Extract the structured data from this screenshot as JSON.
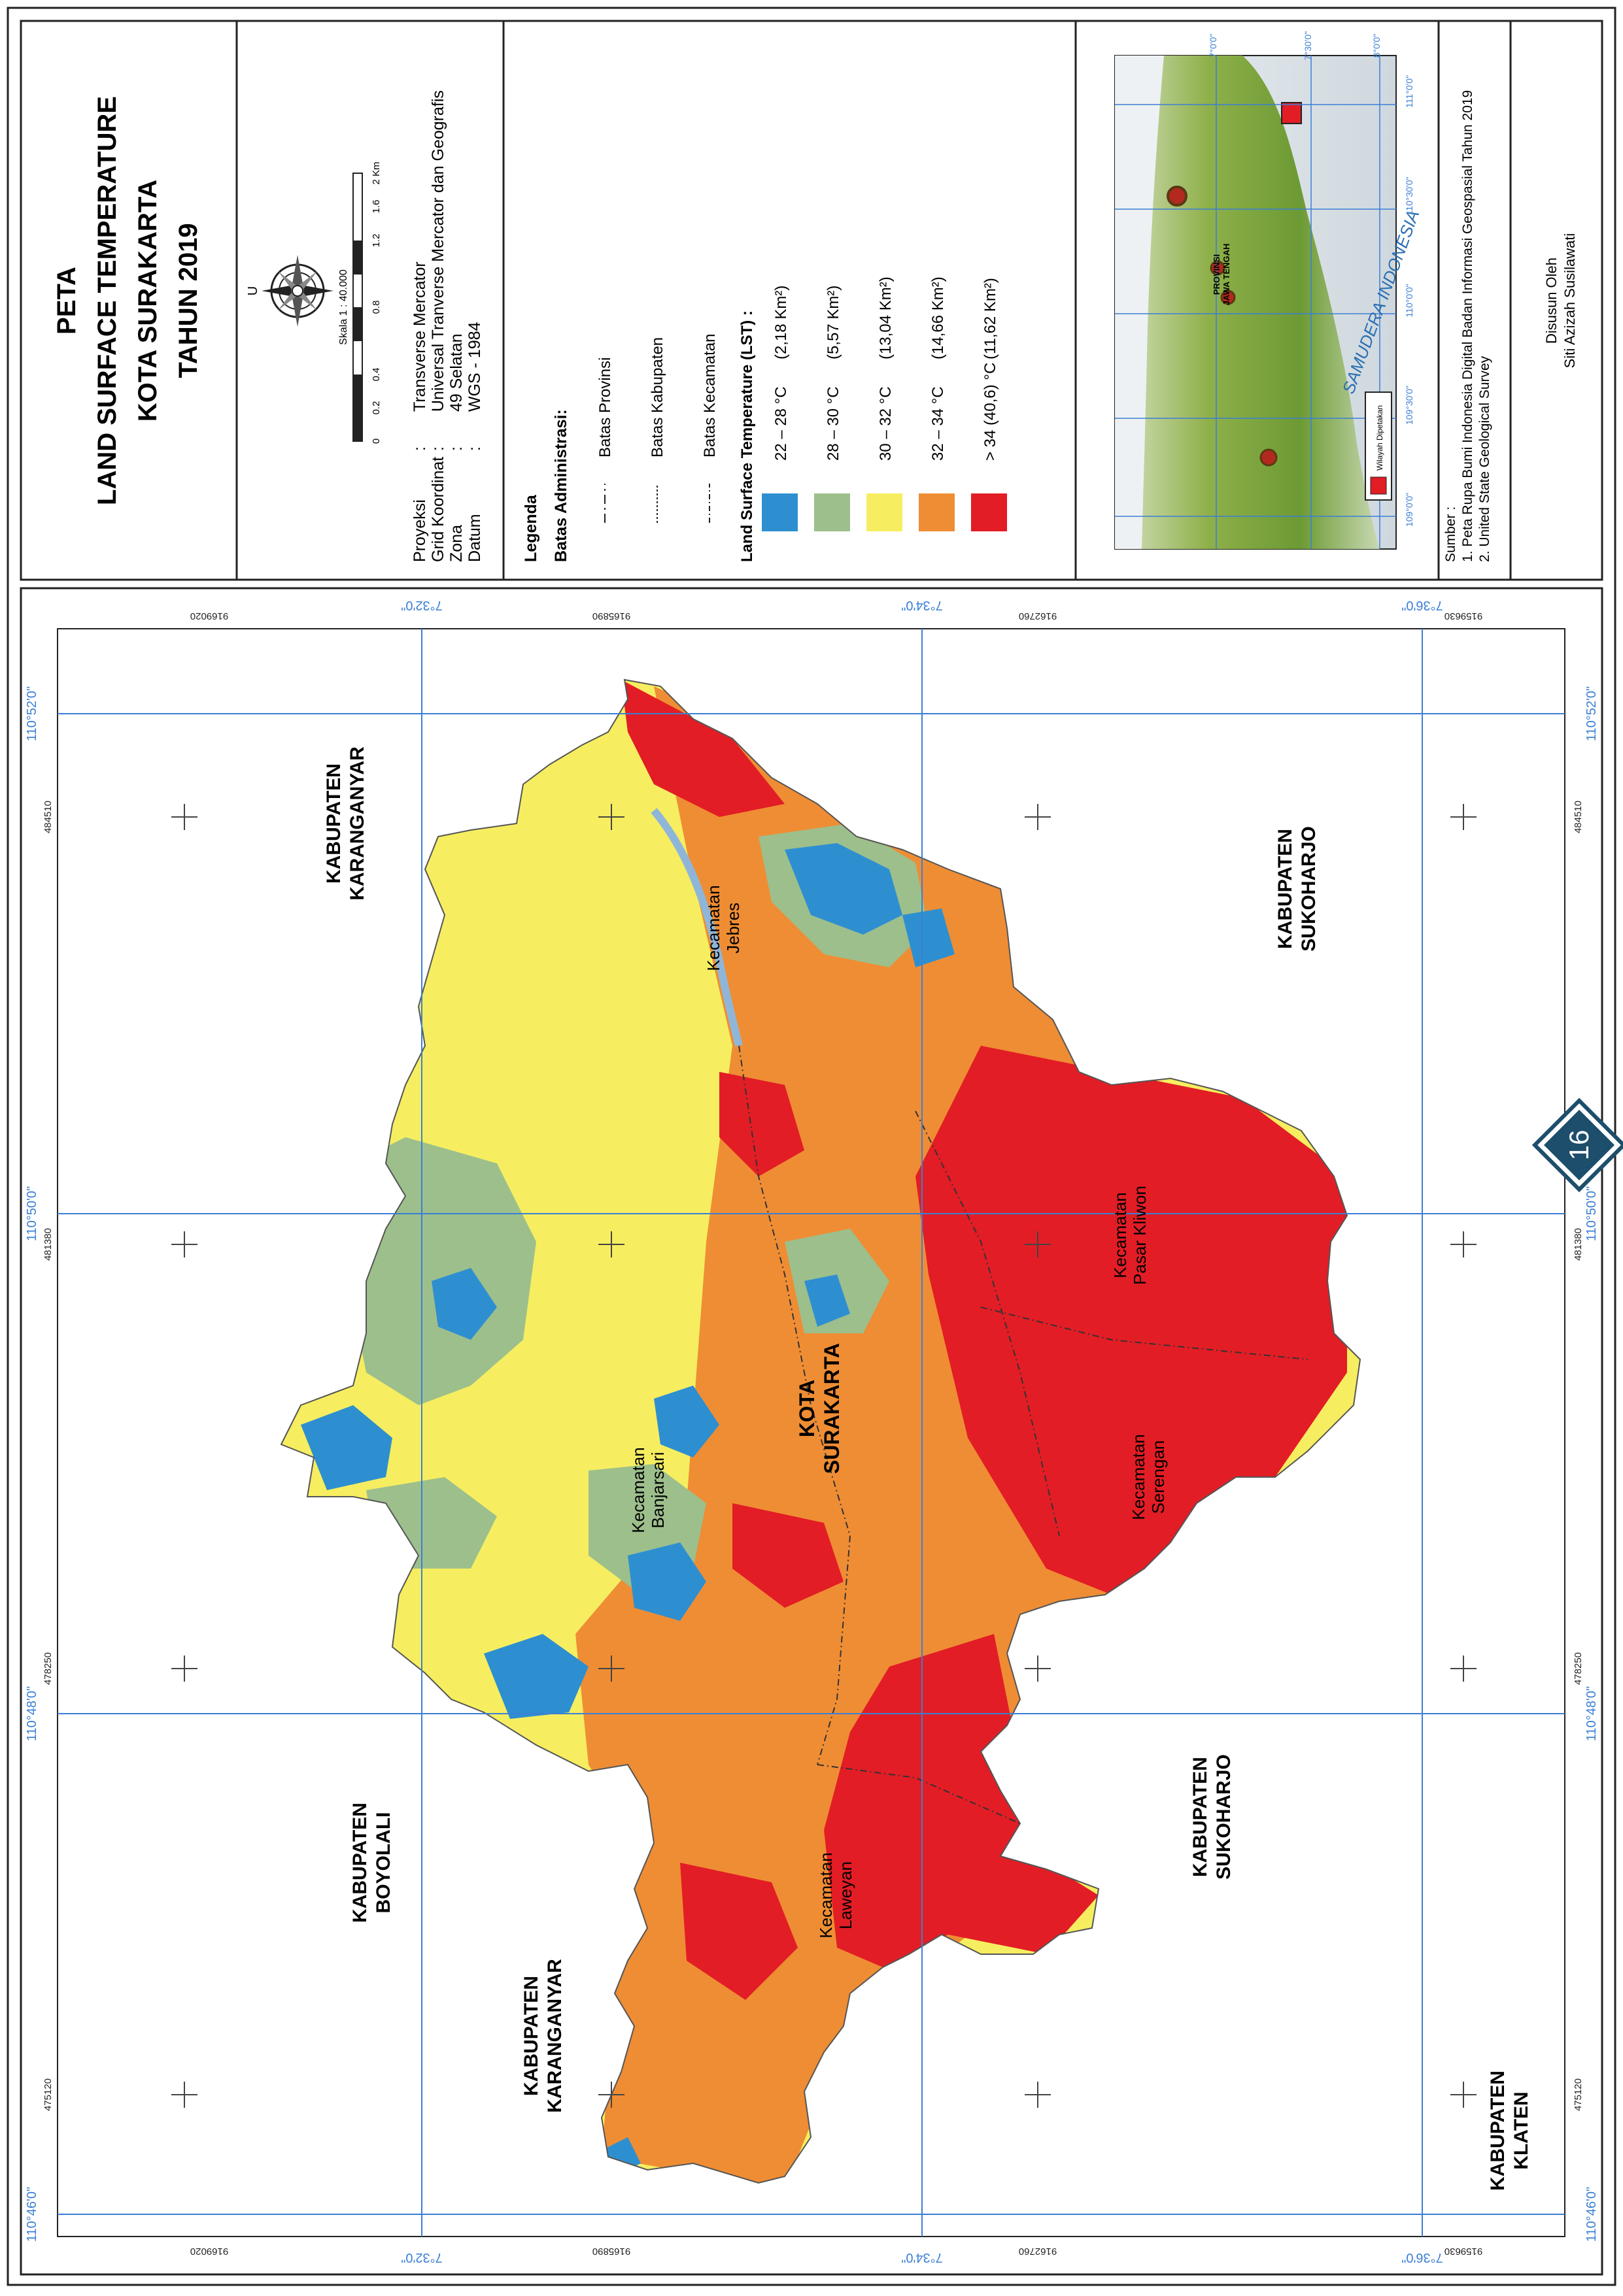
{
  "title": {
    "line1": "PETA",
    "line2": "LAND SURFACE TEMPERATURE",
    "line3": "KOTA SURAKARTA",
    "line4": "TAHUN 2019"
  },
  "north_label": "U",
  "scale": {
    "label": "Skala 1 : 40.000",
    "ticks": [
      "0",
      "0.2",
      "0.4",
      "0.8",
      "1.2",
      "1.6",
      "2 Km"
    ]
  },
  "projection": [
    {
      "key": "Proyeksi",
      "value": "Transverse Mercator"
    },
    {
      "key": "Grid Koordinat",
      "value": "Universal Tranverse Mercator dan Geografis"
    },
    {
      "key": "Zona",
      "value": "49 Selatan"
    },
    {
      "key": "Datum",
      "value": "WGS - 1984"
    }
  ],
  "legend": {
    "title": "Legenda",
    "admin_title": "Batas Administrasi:",
    "admin_items": [
      "Batas Provinsi",
      "Batas Kabupaten",
      "Batas Kecamatan"
    ],
    "lst_title": "Land Surface Temperature (LST) :",
    "lst_classes": [
      {
        "label": "22 – 28 °C",
        "area": "(2,18 Km²)",
        "color": "#2e8fd0"
      },
      {
        "label": "28 – 30 °C",
        "area": "(5,57 Km²)",
        "color": "#9dbf8c"
      },
      {
        "label": "30 – 32 °C",
        "area": "(13,04 Km²)",
        "color": "#f6ee60"
      },
      {
        "label": "32 – 34 °C",
        "area": "(14,66 Km²)",
        "color": "#ef8d34"
      },
      {
        "label": "> 34 (40,6) °C",
        "area": "(11,62 Km²)",
        "color": "#e21d25"
      }
    ]
  },
  "inset": {
    "sea_label": "SAMUDERA INDONESIA",
    "province_label_1": "PROVINSI",
    "province_label_2": "JAWA TENGAH",
    "key_label": "Wilayah Dipetakan",
    "lon_labels": [
      "109°0'0\"",
      "109°30'0\"",
      "110°0'0\"",
      "110°30'0\"",
      "111°0'0\""
    ],
    "lat_labels": [
      "7°0'0\"",
      "7°30'0\"",
      "8°0'0\""
    ]
  },
  "sources": {
    "title": "Sumber :",
    "items": [
      "1. Peta Rupa Bumi Indonesia Digital Badan Informasi Geospasial Tahun 2019",
      "2. United State Geological Survey"
    ]
  },
  "author": {
    "line1": "Disusun Oleh",
    "line2": "Siti Azizah Susilawati"
  },
  "page_number": "16",
  "map": {
    "lon_labels": [
      "110°46'0\"",
      "110°48'0\"",
      "110°50'0\"",
      "110°52'0\""
    ],
    "lat_labels": [
      "7°32'0\"",
      "7°34'0\"",
      "7°36'0\""
    ],
    "easting_labels": [
      "475120",
      "478250",
      "481380",
      "484510"
    ],
    "northing_labels": [
      "9169020",
      "9165890",
      "9162760",
      "9159630"
    ],
    "region_labels": [
      {
        "l1": "KABUPATEN",
        "l2": "KARANGANYAR"
      },
      {
        "l1": "KABUPATEN",
        "l2": "SUKOHARJO"
      },
      {
        "l1": "KABUPATEN",
        "l2": "BOYOLALI"
      },
      {
        "l1": "KABUPATEN",
        "l2": "KARANGANYAR"
      },
      {
        "l1": "KABUPATEN",
        "l2": "SUKOHARJO"
      },
      {
        "l1": "KABUPATEN",
        "l2": "KLATEN"
      }
    ],
    "kecamatan_labels": [
      {
        "l1": "Kecamatan",
        "l2": "Jebres"
      },
      {
        "l1": "Kecamatan",
        "l2": "Pasar Kliwon"
      },
      {
        "l1": "Kecamatan",
        "l2": "Banjarsari"
      },
      {
        "l1": "Kecamatan",
        "l2": "Serengan"
      },
      {
        "l1": "Kecamatan",
        "l2": "Laweyan"
      }
    ],
    "city_label": {
      "l1": "KOTA",
      "l2": "SURAKARTA"
    }
  },
  "colors": {
    "grid": "#3a7fd5",
    "frame": "#222222",
    "badge": "#1d4e6b"
  }
}
